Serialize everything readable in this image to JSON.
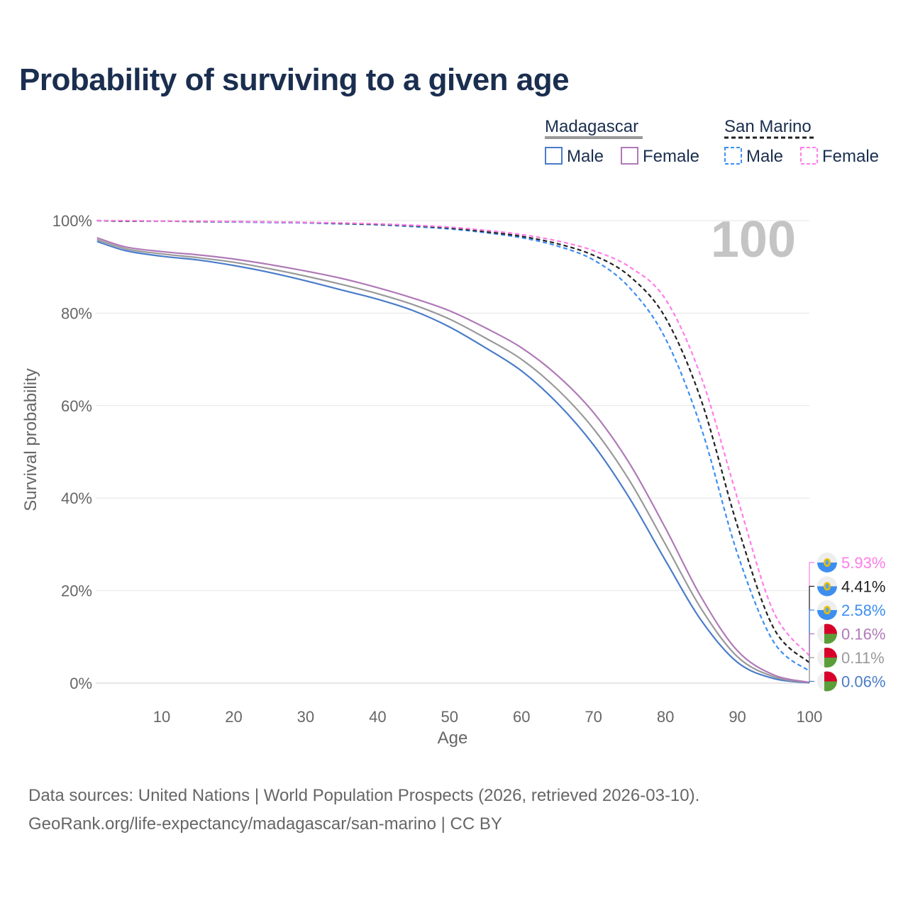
{
  "title": "Probability of surviving to a given age",
  "legend": {
    "group1": "Madagascar",
    "group2": "San Marino",
    "male": "Male",
    "female": "Female"
  },
  "big_label": "100",
  "source_line1": "Data sources: United Nations | World Population Prospects (2026, retrieved 2026-03-10).",
  "source_line2": "GeoRank.org/life-expectancy/madagascar/san-marino | CC BY",
  "chart_data": {
    "type": "line",
    "title": "Probability of surviving to a given age",
    "xlabel": "Age",
    "ylabel": "Survival probability",
    "xlim": [
      0,
      100
    ],
    "ylim": [
      0,
      100
    ],
    "xticks": [
      10,
      20,
      30,
      40,
      50,
      60,
      70,
      80,
      90,
      100
    ],
    "yticks": [
      {
        "v": 0,
        "l": "0%"
      },
      {
        "v": 20,
        "l": "20%"
      },
      {
        "v": 40,
        "l": "40%"
      },
      {
        "v": 60,
        "l": "60%"
      },
      {
        "v": 80,
        "l": "80%"
      },
      {
        "v": 100,
        "l": "100%"
      }
    ],
    "x": [
      1,
      5,
      10,
      15,
      20,
      25,
      30,
      35,
      40,
      45,
      50,
      55,
      60,
      65,
      70,
      75,
      80,
      85,
      90,
      95,
      100
    ],
    "series": [
      {
        "name": "Madagascar Male",
        "color": "#4a7cc9",
        "dash": false,
        "flag": "mg",
        "end_label": "0.06%",
        "values": [
          95.5,
          93.5,
          92.3,
          91.5,
          90.3,
          88.8,
          87,
          85,
          83,
          80.5,
          77,
          72.5,
          67.5,
          60.5,
          51.5,
          40,
          26.5,
          13.5,
          4.5,
          1,
          0.06
        ]
      },
      {
        "name": "Madagascar Total",
        "color": "#999999",
        "dash": false,
        "flag": "mg",
        "end_label": "0.11%",
        "values": [
          95.9,
          93.9,
          92.8,
          92,
          91,
          89.6,
          88,
          86.2,
          84.2,
          81.8,
          78.7,
          74.6,
          70,
          63.5,
          55,
          43.8,
          30,
          16,
          5.7,
          1.4,
          0.11
        ]
      },
      {
        "name": "Madagascar Female",
        "color": "#b07ab8",
        "dash": false,
        "flag": "mg",
        "end_label": "0.16%",
        "values": [
          96.3,
          94.3,
          93.3,
          92.6,
          91.7,
          90.5,
          89.1,
          87.5,
          85.5,
          83.2,
          80.5,
          76.8,
          72.5,
          66.5,
          58.5,
          47.5,
          33.5,
          18.5,
          7,
          1.8,
          0.16
        ]
      },
      {
        "name": "San Marino Male",
        "color": "#3d8ef0",
        "dash": true,
        "flag": "sm",
        "end_label": "2.58%",
        "values": [
          100,
          99.9,
          99.9,
          99.8,
          99.7,
          99.6,
          99.5,
          99.3,
          99.1,
          98.7,
          98.2,
          97.4,
          96.3,
          94.5,
          91.5,
          85.5,
          74.5,
          55,
          28,
          9,
          2.58
        ]
      },
      {
        "name": "San Marino Total",
        "color": "#222222",
        "dash": true,
        "flag": "sm",
        "end_label": "4.41%",
        "values": [
          100,
          99.9,
          99.9,
          99.8,
          99.8,
          99.7,
          99.6,
          99.4,
          99.2,
          98.9,
          98.4,
          97.6,
          96.6,
          95,
          92.5,
          88,
          79,
          61,
          34,
          12,
          4.41
        ]
      },
      {
        "name": "San Marino Female",
        "color": "#ff7de8",
        "dash": true,
        "flag": "sm",
        "end_label": "5.93%",
        "values": [
          100,
          100,
          99.9,
          99.9,
          99.8,
          99.7,
          99.6,
          99.5,
          99.3,
          99,
          98.6,
          97.9,
          97,
          95.6,
          93.5,
          90,
          83,
          66,
          40,
          15.5,
          5.93
        ]
      }
    ]
  }
}
